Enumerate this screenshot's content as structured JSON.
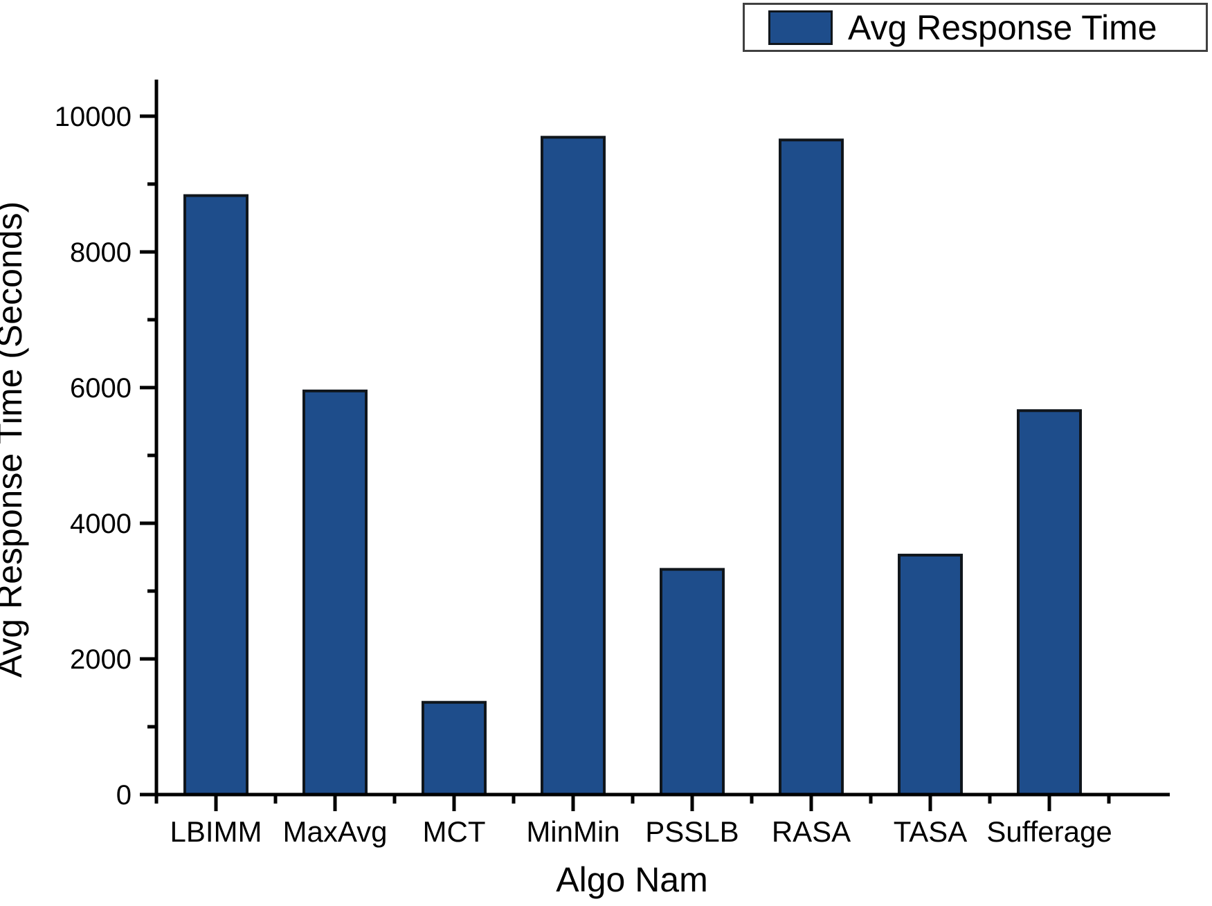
{
  "chart_data": {
    "type": "bar",
    "title": "",
    "categories": [
      "LBIMM",
      "MaxAvg",
      "MCT",
      "MinMin",
      "PSSLB",
      "RASA",
      "TASA",
      "Sufferage"
    ],
    "values": [
      8830,
      5950,
      1360,
      9690,
      3320,
      9650,
      3530,
      5660
    ],
    "series_name": "Avg Response Time",
    "xlabel": "Algo Nam",
    "ylabel": "Avg Response Time (Seconds)",
    "ylim": [
      0,
      10540
    ],
    "yticks": [
      0,
      2000,
      4000,
      6000,
      8000,
      10000
    ],
    "minor_ytick_interval": 1000,
    "legend": {
      "label": "Avg Response Time",
      "position": "top-right"
    },
    "grid": false,
    "colors": {
      "bar_fill": "#1E4D8B",
      "bar_border": "#10161c",
      "axis": "#000000",
      "text": "#000000",
      "legend_border": "#404040",
      "background": "#ffffff"
    }
  }
}
